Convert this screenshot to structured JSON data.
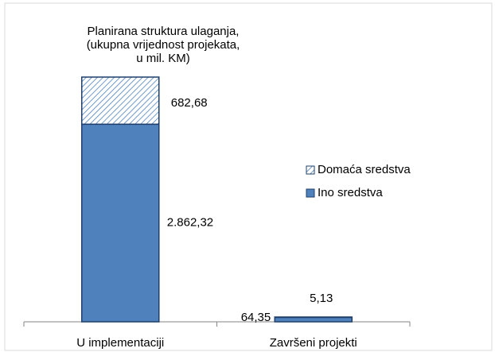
{
  "chart_data": {
    "type": "stacked_bar",
    "title": [
      "Planirana struktura ulaganja,",
      "(ukupna vrijednost projekata,",
      "u mil. KM)"
    ],
    "categories": [
      "U implementaciji",
      "Završeni projekti"
    ],
    "series": [
      {
        "name": "Ino sredstva",
        "color": "#4f81bd",
        "values": [
          2862.32,
          64.35
        ],
        "value_labels": [
          "2.862,32",
          "64,35"
        ]
      },
      {
        "name": "Domaća sredstva",
        "color": "#4f81bd",
        "hatch": true,
        "values": [
          682.68,
          5.13
        ],
        "value_labels": [
          "682,68",
          "5,13"
        ]
      }
    ],
    "legend": "right"
  }
}
